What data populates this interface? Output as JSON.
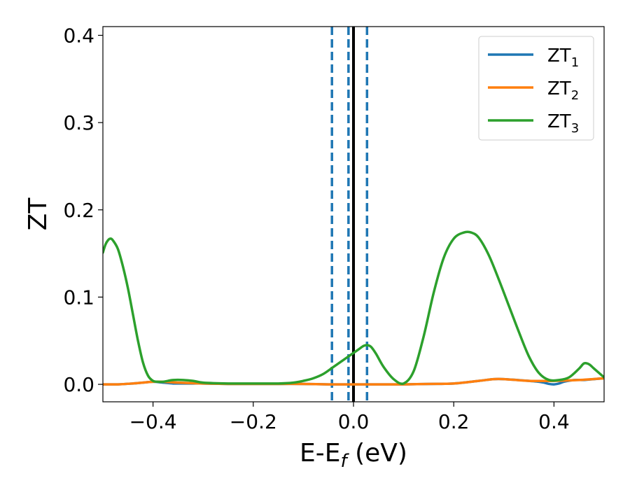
{
  "chart_data": {
    "type": "line",
    "xlabel_main": "E-E",
    "xlabel_sub": "f",
    "xlabel_unit": " (eV)",
    "ylabel": "ZT",
    "xlim": [
      -0.5,
      0.5
    ],
    "ylim": [
      -0.02,
      0.41
    ],
    "x_ticks": [
      -0.4,
      -0.2,
      0.0,
      0.2,
      0.4
    ],
    "x_tick_labels": [
      "−0.4",
      "−0.2",
      "0.0",
      "0.2",
      "0.4"
    ],
    "y_ticks": [
      0.0,
      0.1,
      0.2,
      0.3,
      0.4
    ],
    "y_tick_labels": [
      "0.0",
      "0.1",
      "0.2",
      "0.3",
      "0.4"
    ],
    "legend_position": "top-right",
    "grid": false,
    "vlines": [
      {
        "x": -0.043,
        "style": "dashed",
        "color": "#1f77b4"
      },
      {
        "x": -0.01,
        "style": "dashed",
        "color": "#1f77b4"
      },
      {
        "x": 0.0,
        "style": "solid",
        "color": "#000000"
      },
      {
        "x": 0.027,
        "style": "dashed",
        "color": "#1f77b4"
      }
    ],
    "series": [
      {
        "name": "ZT",
        "subscript": "1",
        "color": "#1f77b4",
        "x": [
          -0.5,
          -0.47,
          -0.44,
          -0.42,
          -0.4,
          -0.38,
          -0.36,
          -0.34,
          -0.32,
          -0.3,
          -0.25,
          -0.2,
          -0.15,
          -0.1,
          -0.05,
          0.0,
          0.05,
          0.1,
          0.15,
          0.2,
          0.25,
          0.28,
          0.3,
          0.35,
          0.37,
          0.38,
          0.39,
          0.4,
          0.41,
          0.42,
          0.44,
          0.46,
          0.48,
          0.5
        ],
        "y": [
          0.0,
          0.0,
          0.001,
          0.002,
          0.003,
          0.002,
          0.001,
          0.001,
          0.001,
          0.001,
          0.0005,
          0.0005,
          0.0005,
          0.0005,
          0.0,
          0.0,
          0.0,
          0.0,
          0.0005,
          0.001,
          0.004,
          0.006,
          0.006,
          0.004,
          0.003,
          0.002,
          0.0005,
          0.0,
          0.001,
          0.003,
          0.005,
          0.005,
          0.006,
          0.007
        ]
      },
      {
        "name": "ZT",
        "subscript": "2",
        "color": "#ff7f0e",
        "x": [
          -0.5,
          -0.47,
          -0.44,
          -0.42,
          -0.4,
          -0.38,
          -0.35,
          -0.3,
          -0.25,
          -0.2,
          -0.15,
          -0.1,
          -0.05,
          0.0,
          0.05,
          0.1,
          0.15,
          0.2,
          0.25,
          0.28,
          0.3,
          0.35,
          0.4,
          0.45,
          0.5
        ],
        "y": [
          0.0,
          0.0,
          0.001,
          0.002,
          0.003,
          0.003,
          0.002,
          0.001,
          0.0005,
          0.0005,
          0.0005,
          0.0005,
          0.0,
          0.0,
          0.0,
          0.0,
          0.0005,
          0.001,
          0.004,
          0.006,
          0.006,
          0.004,
          0.004,
          0.005,
          0.007
        ]
      },
      {
        "name": "ZT",
        "subscript": "3",
        "color": "#2ca02c",
        "x": [
          -0.5,
          -0.495,
          -0.49,
          -0.485,
          -0.48,
          -0.47,
          -0.46,
          -0.45,
          -0.44,
          -0.43,
          -0.42,
          -0.41,
          -0.4,
          -0.39,
          -0.38,
          -0.37,
          -0.36,
          -0.34,
          -0.32,
          -0.3,
          -0.25,
          -0.2,
          -0.15,
          -0.12,
          -0.1,
          -0.08,
          -0.06,
          -0.04,
          -0.02,
          0.0,
          0.01,
          0.02,
          0.027,
          0.035,
          0.045,
          0.06,
          0.08,
          0.1,
          0.12,
          0.14,
          0.16,
          0.18,
          0.2,
          0.22,
          0.235,
          0.25,
          0.27,
          0.29,
          0.31,
          0.33,
          0.35,
          0.37,
          0.39,
          0.41,
          0.43,
          0.45,
          0.46,
          0.47,
          0.48,
          0.5
        ],
        "y": [
          0.151,
          0.16,
          0.165,
          0.167,
          0.165,
          0.155,
          0.135,
          0.11,
          0.08,
          0.05,
          0.025,
          0.01,
          0.004,
          0.003,
          0.003,
          0.004,
          0.005,
          0.005,
          0.004,
          0.002,
          0.001,
          0.001,
          0.001,
          0.002,
          0.004,
          0.007,
          0.012,
          0.02,
          0.028,
          0.036,
          0.04,
          0.044,
          0.045,
          0.043,
          0.035,
          0.02,
          0.006,
          0.001,
          0.015,
          0.055,
          0.105,
          0.145,
          0.167,
          0.174,
          0.174,
          0.168,
          0.148,
          0.12,
          0.09,
          0.06,
          0.032,
          0.013,
          0.005,
          0.005,
          0.008,
          0.018,
          0.024,
          0.023,
          0.018,
          0.008
        ]
      }
    ]
  }
}
